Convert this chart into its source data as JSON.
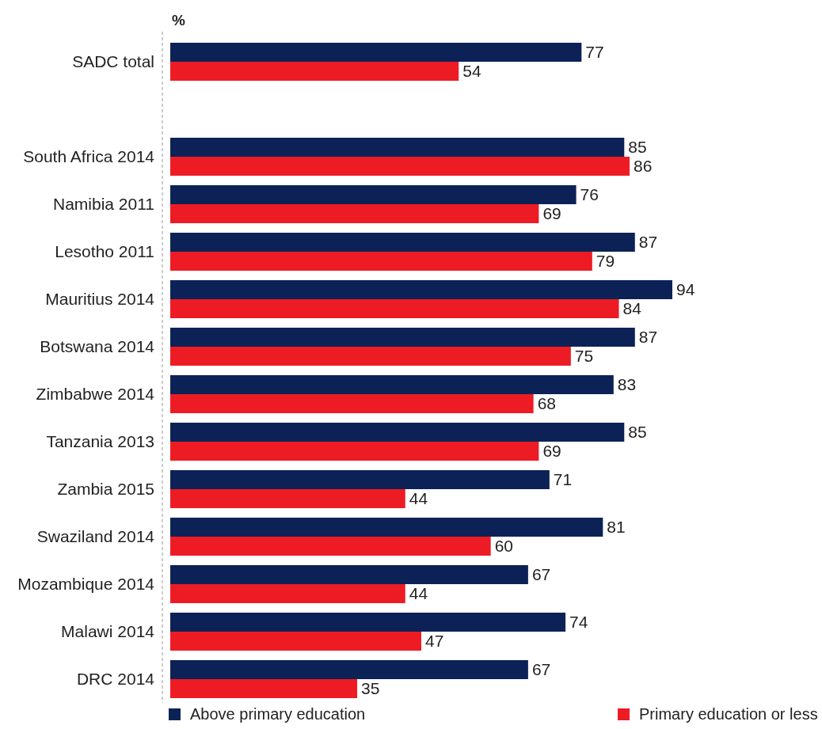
{
  "chart_data": {
    "type": "bar",
    "orientation": "horizontal",
    "xlabel": "%",
    "categories": [
      "SADC total",
      null,
      "South Africa 2014",
      "Namibia 2011",
      "Lesotho 2011",
      "Mauritius 2014",
      "Botswana 2014",
      "Zimbabwe 2014",
      "Tanzania 2013",
      "Zambia 2015",
      "Swaziland 2014",
      "Mozambique 2014",
      "Malawi 2014",
      "DRC 2014"
    ],
    "series": [
      {
        "name": "Above primary education",
        "color": "#0c2257",
        "values": [
          77,
          null,
          85,
          76,
          87,
          94,
          87,
          83,
          85,
          71,
          81,
          67,
          74,
          67
        ]
      },
      {
        "name": "Primary education or less",
        "color": "#ed1c24",
        "values": [
          54,
          null,
          86,
          69,
          79,
          84,
          75,
          68,
          69,
          44,
          60,
          44,
          47,
          35
        ]
      }
    ],
    "data_labels": true,
    "legend": "bottom"
  }
}
